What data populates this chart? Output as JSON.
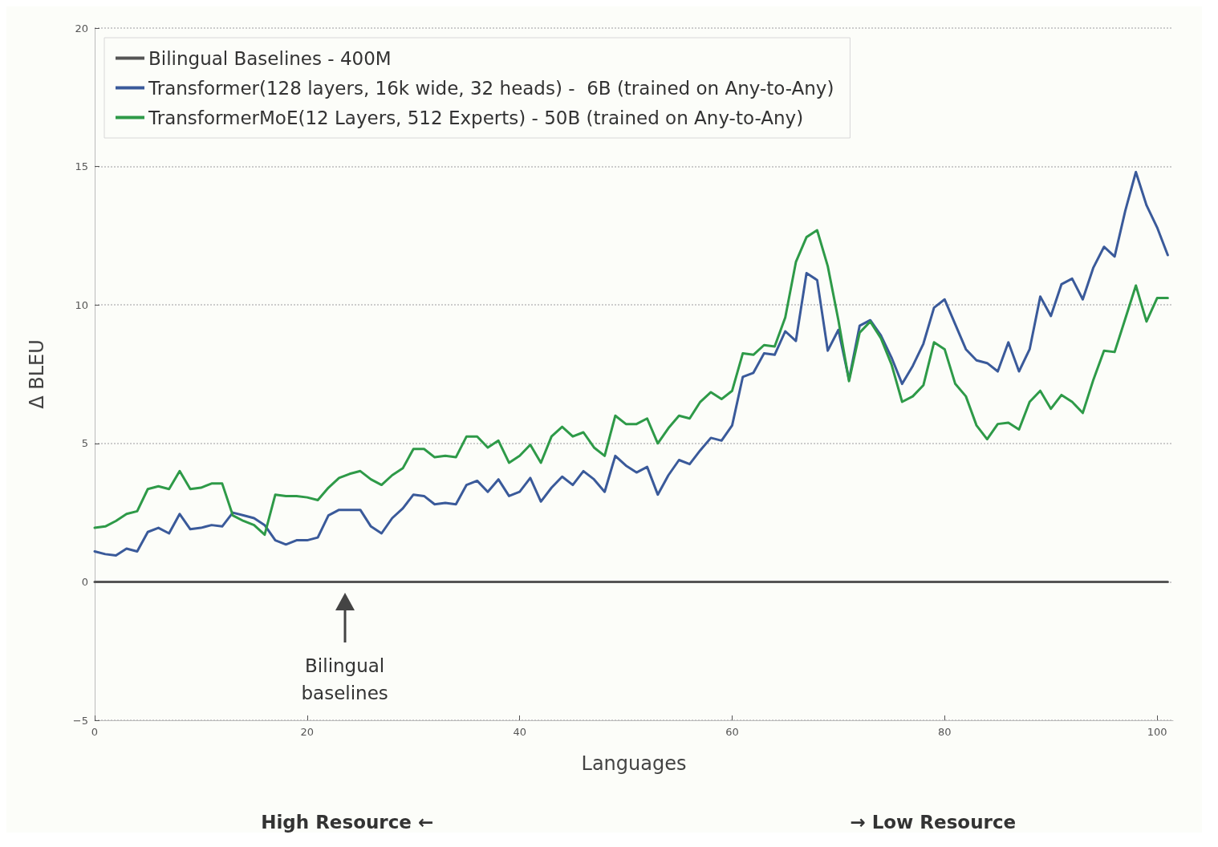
{
  "chart_data": {
    "type": "line",
    "xlabel": "Languages",
    "ylabel": "Δ BLEU",
    "xlim": [
      0,
      101.5
    ],
    "xticks": [
      0,
      20,
      40,
      60,
      80,
      100
    ],
    "ylim": [
      -5,
      20
    ],
    "yticks": [
      -5,
      0,
      5,
      10,
      15,
      20
    ],
    "x": [
      0,
      1,
      2,
      3,
      4,
      5,
      6,
      7,
      8,
      9,
      10,
      11,
      12,
      13,
      14,
      15,
      16,
      17,
      18,
      19,
      20,
      21,
      22,
      23,
      24,
      25,
      26,
      27,
      28,
      29,
      30,
      31,
      32,
      33,
      34,
      35,
      36,
      37,
      38,
      39,
      40,
      41,
      42,
      43,
      44,
      45,
      46,
      47,
      48,
      49,
      50,
      51,
      52,
      53,
      54,
      55,
      56,
      57,
      58,
      59,
      60,
      61,
      62,
      63,
      64,
      65,
      66,
      67,
      68,
      69,
      70,
      71,
      72,
      73,
      74,
      75,
      76,
      77,
      78,
      79,
      80,
      81,
      82,
      83,
      84,
      85,
      86,
      87,
      88,
      89,
      90,
      91,
      92,
      93,
      94,
      95,
      96,
      97,
      98,
      99,
      100,
      101
    ],
    "grid": "y",
    "legend": "top left",
    "line_style": "solid",
    "marker": "none",
    "series": [
      {
        "name": "Bilingual Baselines - 400M",
        "color": "#555555",
        "x": [
          0,
          101
        ],
        "values": [
          0,
          0
        ]
      },
      {
        "name": "Transformer(128 layers, 16k wide, 32 heads) -  6B (trained on Any-to-Any)",
        "color": "#3a5a9a",
        "values": [
          1.1,
          1.0,
          0.95,
          1.2,
          1.1,
          1.8,
          1.95,
          1.75,
          2.45,
          1.9,
          1.95,
          2.05,
          2.0,
          2.5,
          2.4,
          2.3,
          2.05,
          1.5,
          1.35,
          1.5,
          1.5,
          1.6,
          2.4,
          2.6,
          2.6,
          2.6,
          2.0,
          1.75,
          2.3,
          2.65,
          3.15,
          3.1,
          2.8,
          2.85,
          2.8,
          3.5,
          3.65,
          3.25,
          3.7,
          3.1,
          3.25,
          3.75,
          2.9,
          3.4,
          3.8,
          3.5,
          4.0,
          3.7,
          3.25,
          4.55,
          4.2,
          3.95,
          4.15,
          3.15,
          3.85,
          4.4,
          4.25,
          4.75,
          5.2,
          5.1,
          5.65,
          7.4,
          7.55,
          8.25,
          8.2,
          9.05,
          8.7,
          11.15,
          10.9,
          8.35,
          9.1,
          7.3,
          9.25,
          9.45,
          8.9,
          8.1,
          7.15,
          7.8,
          8.6,
          9.9,
          10.2,
          9.3,
          8.4,
          8.0,
          7.9,
          7.6,
          8.65,
          7.6,
          8.4,
          10.3,
          9.6,
          10.75,
          10.95,
          10.2,
          11.35,
          12.1,
          11.75,
          13.4,
          14.8,
          13.6,
          12.8,
          11.8
        ]
      },
      {
        "name": "TransformerMoE(12 Layers, 512 Experts) - 50B (trained on Any-to-Any)",
        "color": "#2e9a48",
        "values": [
          1.95,
          2.0,
          2.2,
          2.45,
          2.55,
          3.35,
          3.45,
          3.35,
          4.0,
          3.35,
          3.4,
          3.55,
          3.55,
          2.4,
          2.2,
          2.05,
          1.7,
          3.15,
          3.1,
          3.1,
          3.05,
          2.95,
          3.4,
          3.75,
          3.9,
          4.0,
          3.7,
          3.5,
          3.85,
          4.1,
          4.8,
          4.8,
          4.5,
          4.55,
          4.5,
          5.25,
          5.25,
          4.85,
          5.1,
          4.3,
          4.55,
          4.95,
          4.3,
          5.25,
          5.6,
          5.25,
          5.4,
          4.85,
          4.55,
          6.0,
          5.7,
          5.7,
          5.9,
          5.0,
          5.55,
          6.0,
          5.9,
          6.5,
          6.85,
          6.6,
          6.9,
          8.25,
          8.2,
          8.55,
          8.5,
          9.55,
          11.55,
          12.45,
          12.7,
          11.4,
          9.45,
          7.25,
          9.0,
          9.4,
          8.8,
          7.85,
          6.5,
          6.7,
          7.1,
          8.65,
          8.4,
          7.15,
          6.7,
          5.65,
          5.15,
          5.7,
          5.75,
          5.5,
          6.5,
          6.9,
          6.25,
          6.75,
          6.5,
          6.1,
          7.3,
          8.35,
          8.3,
          9.5,
          10.7,
          9.4,
          10.25,
          10.25
        ]
      }
    ],
    "annotations": [
      "Bilingual\nbaselines",
      "High Resource ←",
      "→ Low Resource"
    ]
  }
}
